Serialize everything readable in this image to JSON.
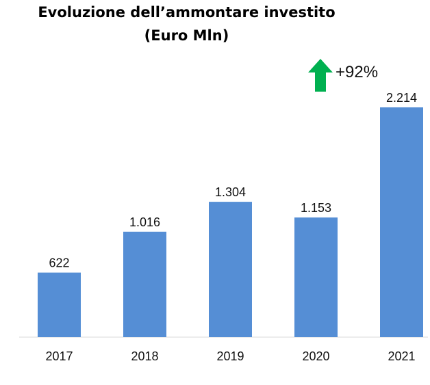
{
  "chart_data": {
    "type": "bar",
    "title": "Evoluzione dell’ammontare investito",
    "subtitle": "(Euro Mln)",
    "categories": [
      "2017",
      "2018",
      "2019",
      "2020",
      "2021"
    ],
    "values": [
      622,
      1016,
      1304,
      1153,
      2214
    ],
    "value_labels": [
      "622",
      "1.016",
      "1.304",
      "1.153",
      "2.214"
    ],
    "ylim": [
      0,
      2214
    ],
    "grid": false,
    "bar_color": "#558ED5",
    "annotation": {
      "text": "+92%",
      "icon": "up-arrow-icon",
      "color": "#00B050"
    }
  }
}
